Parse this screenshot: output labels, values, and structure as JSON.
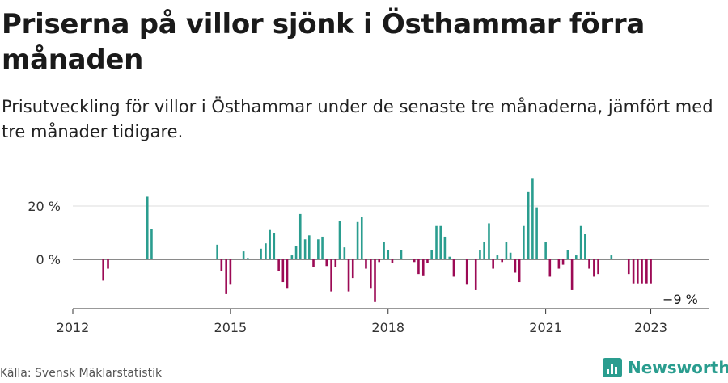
{
  "title": "Priserna på villor sjönk i Östhammar förra månaden",
  "subtitle": "Prisutveckling för villor i Östhammar under de senaste tre månaderna, jämfört med tre månader tidigare.",
  "source": "Källa: Svensk Mäklarstatistik",
  "brand": {
    "name": "Newsworthy",
    "icon": "newsworthy-logo-icon"
  },
  "colors": {
    "positive": "#2a9d8f",
    "negative": "#9c0a55",
    "axis": "#333333",
    "grid": "#dddddd"
  },
  "chart_data": {
    "type": "bar",
    "title": "",
    "xlabel": "",
    "ylabel": "",
    "ylim": [
      -17,
      33
    ],
    "grid": true,
    "y_ticks": [
      {
        "value": 20,
        "label": "20 %"
      },
      {
        "value": 0,
        "label": "0 %"
      }
    ],
    "x_ticks": [
      "2012",
      "2015",
      "2018",
      "2021",
      "2023"
    ],
    "x_tick_positions": [
      2012,
      2015,
      2018,
      2021,
      2023
    ],
    "x_start": 2012,
    "x_end": 2024.1,
    "annotation": "−9 %",
    "series": [
      {
        "x": [
          2012.58,
          2012.67,
          2013.42,
          2013.5,
          2014.75,
          2014.83,
          2014.92,
          2015.0,
          2015.25,
          2015.33,
          2015.58,
          2015.67,
          2015.75,
          2015.83,
          2015.92,
          2016.0,
          2016.08,
          2016.17,
          2016.25,
          2016.33,
          2016.42,
          2016.5,
          2016.58,
          2016.67,
          2016.75,
          2016.83,
          2016.92,
          2017.0,
          2017.08,
          2017.17,
          2017.25,
          2017.33,
          2017.42,
          2017.5,
          2017.58,
          2017.67,
          2017.75,
          2017.83,
          2017.92,
          2018.0,
          2018.08,
          2018.25,
          2018.5,
          2018.58,
          2018.67,
          2018.75,
          2018.83,
          2018.92,
          2019.0,
          2019.08,
          2019.17,
          2019.25,
          2019.5,
          2019.67,
          2019.75,
          2019.83,
          2019.92,
          2020.0,
          2020.08,
          2020.17,
          2020.25,
          2020.33,
          2020.42,
          2020.5,
          2020.58,
          2020.67,
          2020.75,
          2020.83,
          2021.0,
          2021.08,
          2021.25,
          2021.33,
          2021.42,
          2021.5,
          2021.58,
          2021.67,
          2021.75,
          2021.83,
          2021.92,
          2022.0,
          2022.25,
          2022.58,
          2022.67,
          2022.75,
          2022.83,
          2022.92,
          2023.0,
          2023.08,
          2023.17,
          2023.25
        ],
        "values": [
          -8,
          -3.5,
          23.5,
          11.5,
          5.5,
          -4.5,
          -13,
          -9.5,
          3,
          0.5,
          4,
          6,
          11,
          10,
          -4.5,
          -8.5,
          -11,
          1.5,
          5,
          17,
          7.5,
          9,
          -3,
          7.5,
          8.5,
          -2.5,
          -12,
          -3,
          14.5,
          4.5,
          -12,
          -7,
          14,
          16,
          -3.5,
          -11,
          -16,
          -1,
          6.5,
          3.5,
          -1.5,
          3.5,
          -1,
          -5.5,
          -6,
          -1.5,
          3.5,
          12.5,
          12.5,
          8.5,
          1,
          -6.5,
          -9.5,
          -11.5,
          3.5,
          6.5,
          13.5,
          -3.5,
          1.5,
          -1,
          6.5,
          2.5,
          -5,
          -8.5,
          12.5,
          25.5,
          30.5,
          19.5,
          6.5,
          -6.5,
          -3.5,
          -2,
          3.5,
          -11.5,
          1.5,
          12.5,
          9.5,
          -3.5,
          -6.5,
          -5.5,
          1.5,
          -5.5,
          -9,
          -9,
          -9,
          -9,
          -9,
          -9,
          -9,
          -9
        ]
      }
    ]
  }
}
